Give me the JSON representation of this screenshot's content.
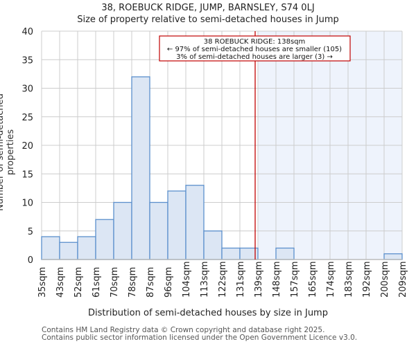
{
  "header": {
    "title": "38, ROEBUCK RIDGE, JUMP, BARNSLEY, S74 0LJ",
    "subtitle": "Size of property relative to semi-detached houses in Jump"
  },
  "annotation": {
    "line1": "38 ROEBUCK RIDGE: 138sqm",
    "line2": "← 97% of semi-detached houses are smaller (105)",
    "line3": "3% of semi-detached houses are larger (3) →"
  },
  "footer": {
    "line1": "Contains HM Land Registry data © Crown copyright and database right 2025.",
    "line2": "Contains public sector information licensed under the Open Government Licence v3.0."
  },
  "colors": {
    "bar_fill": "#dce6f4",
    "bar_edge": "#5b8fcc",
    "marker": "#c00000",
    "highlight_bg": "#eef3fc",
    "grid": "#cccccc"
  },
  "chart_data": {
    "type": "bar",
    "title": "38, ROEBUCK RIDGE, JUMP, BARNSLEY, S74 0LJ",
    "subtitle": "Size of property relative to semi-detached houses in Jump",
    "xlabel": "Distribution of semi-detached houses by size in Jump",
    "ylabel": "Number of semi-detached properties",
    "categories": [
      "35sqm",
      "43sqm",
      "52sqm",
      "61sqm",
      "70sqm",
      "78sqm",
      "87sqm",
      "96sqm",
      "104sqm",
      "113sqm",
      "122sqm",
      "131sqm",
      "139sqm",
      "148sqm",
      "157sqm",
      "165sqm",
      "174sqm",
      "183sqm",
      "192sqm",
      "200sqm",
      "209sqm"
    ],
    "values": [
      4,
      3,
      4,
      7,
      10,
      32,
      10,
      12,
      13,
      5,
      2,
      2,
      0,
      2,
      0,
      0,
      0,
      0,
      0,
      1
    ],
    "ylim": [
      0,
      40
    ],
    "yticks": [
      0,
      5,
      10,
      15,
      20,
      25,
      30,
      35,
      40
    ],
    "grid": true,
    "property_size_sqm": 138,
    "marker_label": "38 ROEBUCK RIDGE: 138sqm"
  }
}
